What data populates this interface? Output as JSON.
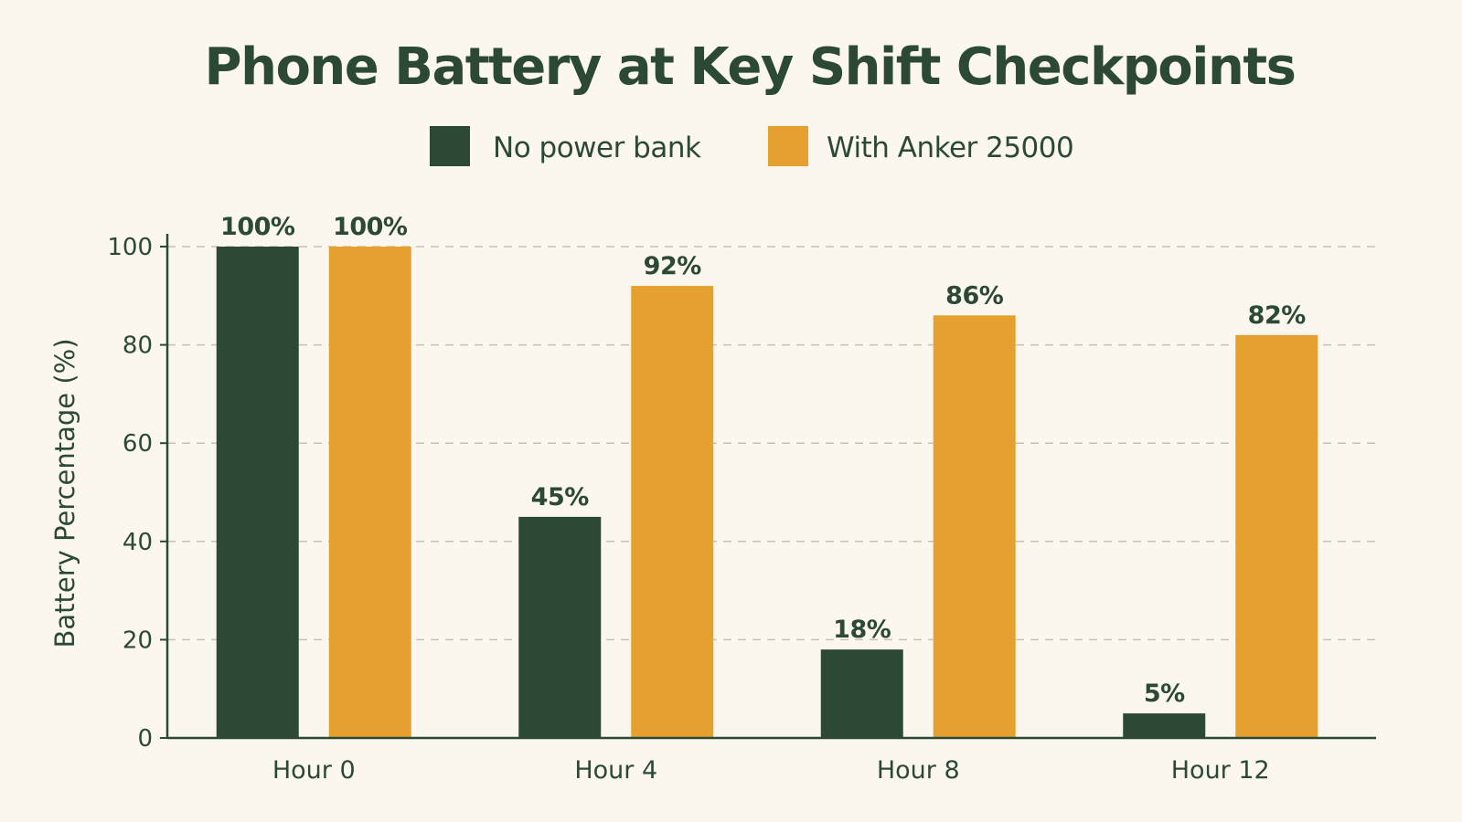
{
  "colors": {
    "background": "#fbf7ef",
    "title": "#2c4a33",
    "text": "#2c4a33",
    "axis": "#2c4a33",
    "grid": "#c9c0b2",
    "series_no_bank": "#2c4a33",
    "series_anker": "#e6a030"
  },
  "chart_data": {
    "type": "bar",
    "title": "Phone Battery at Key Shift Checkpoints",
    "xlabel": "",
    "ylabel": "Battery Percentage (%)",
    "ylim": [
      0,
      100
    ],
    "yticks": [
      0,
      20,
      40,
      60,
      80,
      100
    ],
    "grid": "horizontal dashed",
    "legend_position": "top-center",
    "categories": [
      "Hour 0",
      "Hour 4",
      "Hour 8",
      "Hour 12"
    ],
    "series": [
      {
        "name": "No power bank",
        "color": "#2c4a33",
        "values": [
          100,
          45,
          18,
          5
        ],
        "labels": [
          "100%",
          "45%",
          "18%",
          "5%"
        ]
      },
      {
        "name": "With Anker 25000",
        "color": "#e6a030",
        "values": [
          100,
          92,
          86,
          82
        ],
        "labels": [
          "100%",
          "92%",
          "86%",
          "82%"
        ]
      }
    ]
  }
}
